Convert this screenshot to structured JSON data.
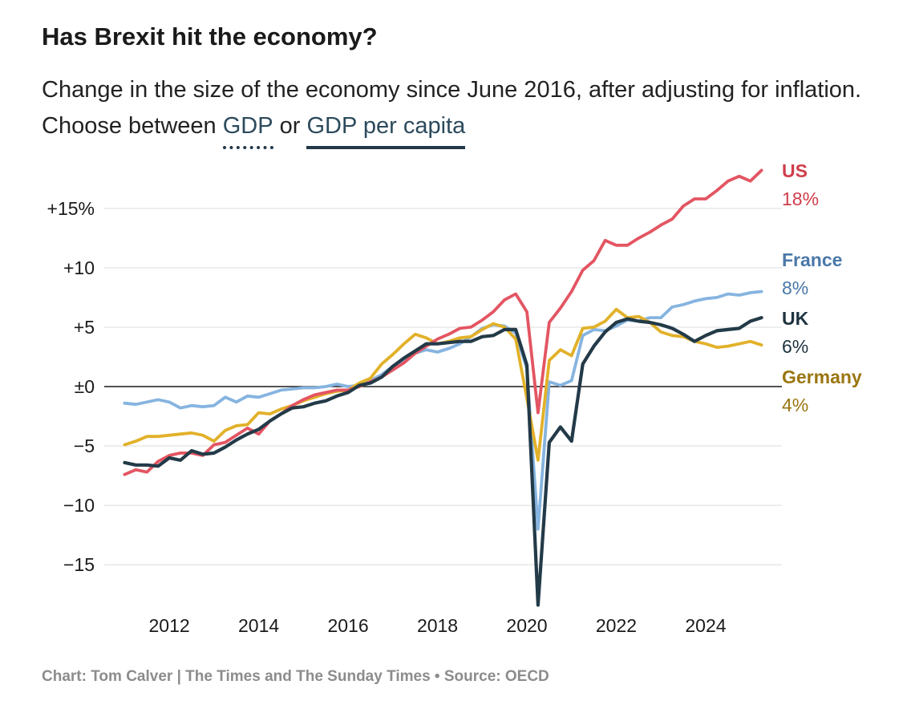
{
  "header": {
    "title": "Has Brexit hit the economy?",
    "subtitle_text": "Change in the size of the economy since June 2016, after adjusting for inflation. Choose between",
    "option_gdp": "GDP",
    "option_joiner": "or",
    "option_gdp_per_capita": "GDP per capita"
  },
  "footer": {
    "credit": "Chart: Tom Calver | The Times and The Sunday Times • Source: OECD"
  },
  "chart_data": {
    "type": "line",
    "title": "Has Brexit hit the economy?",
    "subtitle": "Change in the size of the economy since June 2016, after adjusting for inflation",
    "xlabel": "",
    "ylabel": "",
    "xlim": [
      2010.85,
      2025.4
    ],
    "ylim": [
      -18.5,
      18.5
    ],
    "x_ticks": [
      {
        "value": 2012,
        "label": "2012"
      },
      {
        "value": 2014,
        "label": "2014"
      },
      {
        "value": 2016,
        "label": "2016"
      },
      {
        "value": 2018,
        "label": "2018"
      },
      {
        "value": 2020,
        "label": "2020"
      },
      {
        "value": 2022,
        "label": "2022"
      },
      {
        "value": 2024,
        "label": "2024"
      }
    ],
    "y_ticks": [
      {
        "value": 15,
        "label": "+15%"
      },
      {
        "value": 10,
        "label": "+10"
      },
      {
        "value": 5,
        "label": "+5"
      },
      {
        "value": 0,
        "label": "±0"
      },
      {
        "value": -5,
        "label": "−5"
      },
      {
        "value": -10,
        "label": "−10"
      },
      {
        "value": -15,
        "label": "−15"
      }
    ],
    "series": [
      {
        "name": "France",
        "label": "France",
        "value_label": "8%",
        "color": "#86b4e0",
        "label_color": "#4a78a8",
        "x": [
          2011.0,
          2011.25,
          2011.5,
          2011.75,
          2012.0,
          2012.25,
          2012.5,
          2012.75,
          2013.0,
          2013.25,
          2013.5,
          2013.75,
          2014.0,
          2014.25,
          2014.5,
          2014.75,
          2015.0,
          2015.25,
          2015.5,
          2015.75,
          2016.0,
          2016.25,
          2016.5,
          2016.75,
          2017.0,
          2017.25,
          2017.5,
          2017.75,
          2018.0,
          2018.25,
          2018.5,
          2018.75,
          2019.0,
          2019.25,
          2019.5,
          2019.75,
          2020.0,
          2020.25,
          2020.5,
          2020.75,
          2021.0,
          2021.25,
          2021.5,
          2021.75,
          2022.0,
          2022.25,
          2022.5,
          2022.75,
          2023.0,
          2023.25,
          2023.5,
          2023.75,
          2024.0,
          2024.25,
          2024.5,
          2024.75,
          2025.0,
          2025.25
        ],
        "values": [
          -1.4,
          -1.5,
          -1.3,
          -1.1,
          -1.3,
          -1.8,
          -1.6,
          -1.7,
          -1.6,
          -0.9,
          -1.3,
          -0.8,
          -0.9,
          -0.6,
          -0.3,
          -0.2,
          -0.1,
          -0.1,
          0.0,
          0.2,
          0.0,
          0.1,
          0.5,
          1.0,
          1.7,
          2.2,
          2.8,
          3.1,
          2.9,
          3.2,
          3.6,
          4.2,
          4.9,
          5.2,
          5.1,
          4.5,
          1.5,
          -12.0,
          0.4,
          0.1,
          0.5,
          4.3,
          4.8,
          4.7,
          5.1,
          5.6,
          5.5,
          5.8,
          5.8,
          6.7,
          6.9,
          7.2,
          7.4,
          7.5,
          7.8,
          7.7,
          7.9,
          8.0
        ]
      },
      {
        "name": "Germany",
        "label": "Germany",
        "value_label": "4%",
        "color": "#e2b129",
        "label_color": "#9a7612",
        "x": [
          2011.0,
          2011.25,
          2011.5,
          2011.75,
          2012.0,
          2012.25,
          2012.5,
          2012.75,
          2013.0,
          2013.25,
          2013.5,
          2013.75,
          2014.0,
          2014.25,
          2014.5,
          2014.75,
          2015.0,
          2015.25,
          2015.5,
          2015.75,
          2016.0,
          2016.25,
          2016.5,
          2016.75,
          2017.0,
          2017.25,
          2017.5,
          2017.75,
          2018.0,
          2018.25,
          2018.5,
          2018.75,
          2019.0,
          2019.25,
          2019.5,
          2019.75,
          2020.0,
          2020.25,
          2020.5,
          2020.75,
          2021.0,
          2021.25,
          2021.5,
          2021.75,
          2022.0,
          2022.25,
          2022.5,
          2022.75,
          2023.0,
          2023.25,
          2023.5,
          2023.75,
          2024.0,
          2024.25,
          2024.5,
          2024.75,
          2025.0,
          2025.25
        ],
        "values": [
          -4.9,
          -4.6,
          -4.2,
          -4.2,
          -4.1,
          -4.0,
          -3.9,
          -4.1,
          -4.6,
          -3.7,
          -3.3,
          -3.2,
          -2.2,
          -2.3,
          -1.9,
          -1.6,
          -1.2,
          -0.9,
          -0.6,
          -0.4,
          -0.3,
          0.3,
          0.7,
          1.9,
          2.7,
          3.6,
          4.4,
          4.1,
          3.6,
          3.8,
          4.1,
          4.2,
          4.8,
          5.3,
          5.0,
          4.0,
          -1.0,
          -6.2,
          2.2,
          3.1,
          2.6,
          4.9,
          5.0,
          5.5,
          6.5,
          5.8,
          5.9,
          5.4,
          4.6,
          4.3,
          4.2,
          3.8,
          3.6,
          3.3,
          3.4,
          3.6,
          3.8,
          3.5
        ]
      },
      {
        "name": "US",
        "label": "US",
        "value_label": "18%",
        "color": "#e35562",
        "label_color": "#cf3e4b",
        "x": [
          2011.0,
          2011.25,
          2011.5,
          2011.75,
          2012.0,
          2012.25,
          2012.5,
          2012.75,
          2013.0,
          2013.25,
          2013.5,
          2013.75,
          2014.0,
          2014.25,
          2014.5,
          2014.75,
          2015.0,
          2015.25,
          2015.5,
          2015.75,
          2016.0,
          2016.25,
          2016.5,
          2016.75,
          2017.0,
          2017.25,
          2017.5,
          2017.75,
          2018.0,
          2018.25,
          2018.5,
          2018.75,
          2019.0,
          2019.25,
          2019.5,
          2019.75,
          2020.0,
          2020.25,
          2020.5,
          2020.75,
          2021.0,
          2021.25,
          2021.5,
          2021.75,
          2022.0,
          2022.25,
          2022.5,
          2022.75,
          2023.0,
          2023.25,
          2023.5,
          2023.75,
          2024.0,
          2024.25,
          2024.5,
          2024.75,
          2025.0,
          2025.25
        ],
        "values": [
          -7.4,
          -7.0,
          -7.2,
          -6.3,
          -5.8,
          -5.6,
          -5.6,
          -5.8,
          -4.9,
          -4.7,
          -4.1,
          -3.5,
          -4.0,
          -2.9,
          -2.3,
          -1.6,
          -1.1,
          -0.7,
          -0.5,
          -0.3,
          -0.3,
          0.0,
          0.4,
          0.8,
          1.4,
          2.0,
          2.8,
          3.4,
          4.0,
          4.4,
          4.9,
          5.0,
          5.6,
          6.3,
          7.3,
          7.8,
          6.3,
          -2.2,
          5.4,
          6.6,
          8.0,
          9.8,
          10.6,
          12.3,
          11.9,
          11.9,
          12.5,
          13.0,
          13.6,
          14.1,
          15.2,
          15.8,
          15.8,
          16.5,
          17.3,
          17.7,
          17.3,
          18.2
        ]
      },
      {
        "name": "UK",
        "label": "UK",
        "value_label": "6%",
        "color": "#233a48",
        "label_color": "#1e3340",
        "x": [
          2011.0,
          2011.25,
          2011.5,
          2011.75,
          2012.0,
          2012.25,
          2012.5,
          2012.75,
          2013.0,
          2013.25,
          2013.5,
          2013.75,
          2014.0,
          2014.25,
          2014.5,
          2014.75,
          2015.0,
          2015.25,
          2015.5,
          2015.75,
          2016.0,
          2016.25,
          2016.5,
          2016.75,
          2017.0,
          2017.25,
          2017.5,
          2017.75,
          2018.0,
          2018.25,
          2018.5,
          2018.75,
          2019.0,
          2019.25,
          2019.5,
          2019.75,
          2020.0,
          2020.25,
          2020.5,
          2020.75,
          2021.0,
          2021.25,
          2021.5,
          2021.75,
          2022.0,
          2022.25,
          2022.5,
          2022.75,
          2023.0,
          2023.25,
          2023.5,
          2023.75,
          2024.0,
          2024.25,
          2024.5,
          2024.75,
          2025.0,
          2025.25
        ],
        "values": [
          -6.4,
          -6.6,
          -6.6,
          -6.7,
          -6.0,
          -6.2,
          -5.4,
          -5.7,
          -5.6,
          -5.1,
          -4.5,
          -4.0,
          -3.6,
          -2.9,
          -2.3,
          -1.8,
          -1.7,
          -1.4,
          -1.2,
          -0.8,
          -0.5,
          0.1,
          0.3,
          0.8,
          1.7,
          2.4,
          3.0,
          3.6,
          3.6,
          3.7,
          3.8,
          3.8,
          4.2,
          4.3,
          4.8,
          4.8,
          1.8,
          -18.4,
          -4.7,
          -3.4,
          -4.6,
          1.9,
          3.4,
          4.6,
          5.4,
          5.7,
          5.5,
          5.4,
          5.2,
          4.9,
          4.4,
          3.8,
          4.3,
          4.7,
          4.8,
          4.9,
          5.5,
          5.8
        ]
      }
    ]
  }
}
